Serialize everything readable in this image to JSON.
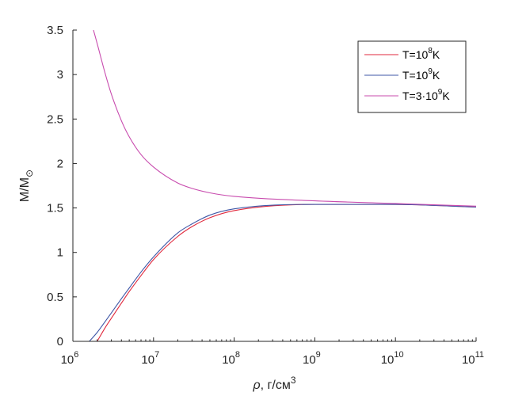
{
  "chart_data": {
    "type": "line",
    "xscale": "log",
    "xlim": [
      1000000,
      100000000000
    ],
    "ylim": [
      0,
      3.5
    ],
    "x_ticks": [
      {
        "base": "10",
        "exp": "6"
      },
      {
        "base": "10",
        "exp": "7"
      },
      {
        "base": "10",
        "exp": "8"
      },
      {
        "base": "10",
        "exp": "9"
      },
      {
        "base": "10",
        "exp": "10"
      },
      {
        "base": "10",
        "exp": "11"
      }
    ],
    "y_ticks": [
      "0",
      "0.5",
      "1",
      "1.5",
      "2",
      "2.5",
      "3",
      "3.5"
    ],
    "xlabel": {
      "italic": "ρ",
      "text": ", г/см",
      "sup": "3"
    },
    "ylabel": {
      "text": "M/M",
      "sub": "⊙"
    },
    "legend_position": "top-right",
    "grid": false,
    "series": [
      {
        "name_parts": {
          "pre": "T=10",
          "sup": "8",
          "post": "K"
        },
        "color": "#e0283c",
        "x": [
          2000000,
          2500000,
          3000000,
          4000000,
          5000000,
          7000000,
          10000000,
          20000000,
          30000000,
          50000000,
          100000000,
          1000000000,
          10000000000,
          100000000000
        ],
        "y": [
          0,
          0.15,
          0.26,
          0.43,
          0.56,
          0.74,
          0.92,
          1.18,
          1.29,
          1.39,
          1.47,
          1.54,
          1.54,
          1.51
        ]
      },
      {
        "name_parts": {
          "pre": "T=10",
          "sup": "9",
          "post": "K"
        },
        "color": "#3f57a7",
        "x": [
          1600000,
          2000000,
          2500000,
          3000000,
          4000000,
          5000000,
          7000000,
          10000000,
          20000000,
          30000000,
          50000000,
          100000000,
          1000000000,
          10000000000,
          100000000000
        ],
        "y": [
          0,
          0.1,
          0.22,
          0.32,
          0.48,
          0.6,
          0.78,
          0.95,
          1.22,
          1.32,
          1.42,
          1.49,
          1.54,
          1.54,
          1.51
        ]
      },
      {
        "name_parts": {
          "pre": "T=3·10",
          "sup": "9",
          "post": "K"
        },
        "color": "#c84bae",
        "x": [
          1800000,
          2000000,
          2500000,
          3000000,
          4000000,
          5000000,
          7000000,
          10000000,
          20000000,
          30000000,
          50000000,
          100000000,
          1000000000,
          10000000000,
          100000000000
        ],
        "y": [
          3.5,
          3.35,
          3.02,
          2.78,
          2.48,
          2.3,
          2.1,
          1.96,
          1.78,
          1.72,
          1.67,
          1.63,
          1.58,
          1.55,
          1.52
        ]
      }
    ]
  }
}
